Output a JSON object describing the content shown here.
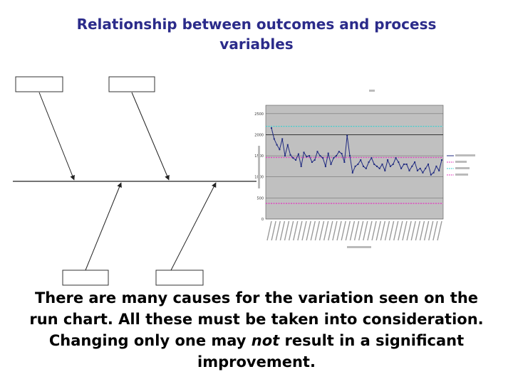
{
  "title": {
    "line1": "Relationship between outcomes and process",
    "line2": "variables"
  },
  "caption": {
    "line1": "There are many causes for the variation seen on the",
    "line2": "run chart. All these must be taken into consideration.",
    "line3_before": "Changing only one may ",
    "line3_emphasis": "not",
    "line3_after": " result in a significant",
    "line4": "improvement."
  },
  "colors": {
    "title": "#2b2b8a",
    "plot_area": "#c0c0c0",
    "series_main": "#1f2a80",
    "average_line": "#e040c0",
    "upper_limit": "#40d0d0",
    "lower_limit": "#e040c0"
  },
  "chart_data": {
    "type": "line",
    "y_tick_labels": [
      "0",
      "500",
      "1000",
      "1500",
      "2000",
      "2500"
    ],
    "ylim": [
      0,
      2700
    ],
    "values": [
      2160,
      1900,
      1760,
      1650,
      1900,
      1500,
      1760,
      1520,
      1450,
      1400,
      1540,
      1250,
      1580,
      1480,
      1500,
      1350,
      1400,
      1600,
      1500,
      1450,
      1250,
      1560,
      1300,
      1450,
      1500,
      1600,
      1550,
      1350,
      1980,
      1500,
      1100,
      1250,
      1300,
      1400,
      1250,
      1200,
      1350,
      1450,
      1300,
      1250,
      1200,
      1300,
      1150,
      1400,
      1250,
      1300,
      1450,
      1350,
      1200,
      1300,
      1300,
      1150,
      1250,
      1350,
      1150,
      1200,
      1100,
      1200,
      1300,
      1050,
      1100,
      1250,
      1150,
      1400
    ],
    "average": 1460,
    "upper_limit": 2200,
    "lower_limit": 370
  }
}
